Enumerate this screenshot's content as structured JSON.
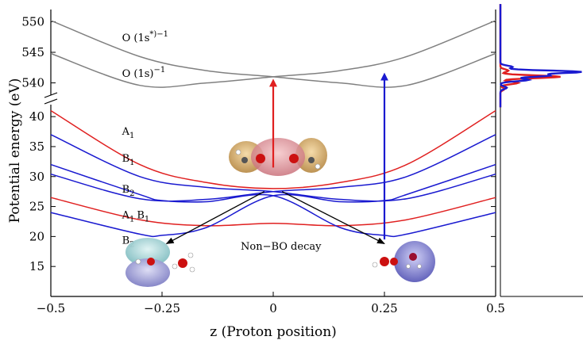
{
  "chart_data": {
    "type": "line",
    "xlabel": "z (Proton position)",
    "ylabel": "Potential energy (eV)",
    "xlim": [
      -0.5,
      0.5
    ],
    "ylim_lower": [
      10,
      42
    ],
    "ylim_upper": [
      538,
      552
    ],
    "x_ticks": [
      "−0.5",
      "−0.25",
      "0",
      "0.25",
      "0.5"
    ],
    "y_ticks_lower": [
      "15",
      "20",
      "25",
      "30",
      "35",
      "40"
    ],
    "y_ticks_upper": [
      "540",
      "545",
      "550"
    ],
    "series": [
      {
        "color": "#808080",
        "x": [
          -0.5,
          -0.3,
          -0.15,
          0,
          0.15,
          0.3,
          0.5
        ],
        "y": [
          550.2,
          544.3,
          542.0,
          541.0,
          540.0,
          539.6,
          544.8
        ]
      },
      {
        "color": "#808080",
        "x": [
          -0.5,
          -0.3,
          -0.15,
          0,
          0.15,
          0.3,
          0.5
        ],
        "y": [
          544.8,
          539.6,
          540.0,
          541.0,
          542.0,
          544.3,
          550.2
        ]
      },
      {
        "color": "#e02020",
        "x": [
          -0.5,
          -0.3,
          -0.15,
          0,
          0.15,
          0.3,
          0.5
        ],
        "y": [
          41.0,
          32.0,
          29.0,
          28.0,
          29.0,
          32.0,
          41.0
        ]
      },
      {
        "color": "#e02020",
        "x": [
          -0.5,
          -0.3,
          -0.15,
          0,
          0.15,
          0.3,
          0.5
        ],
        "y": [
          26.5,
          22.8,
          21.8,
          22.2,
          21.8,
          22.8,
          26.5
        ]
      },
      {
        "color": "#1a1ad0",
        "x": [
          -0.5,
          -0.3,
          -0.15,
          0,
          0.15,
          0.3,
          0.5
        ],
        "y": [
          37.0,
          30.0,
          28.2,
          27.5,
          26.2,
          26.3,
          30.4
        ]
      },
      {
        "color": "#1a1ad0",
        "x": [
          -0.5,
          -0.3,
          -0.15,
          0,
          0.15,
          0.3,
          0.5
        ],
        "y": [
          30.4,
          26.3,
          26.2,
          27.5,
          28.2,
          30.0,
          37.0
        ]
      },
      {
        "color": "#1a1ad0",
        "x": [
          -0.5,
          -0.3,
          -0.25,
          -0.15,
          0,
          0.15,
          0.25,
          0.3,
          0.5
        ],
        "y": [
          32.0,
          27.0,
          26.0,
          25.8,
          26.8,
          21.5,
          20.2,
          20.4,
          24.0
        ]
      },
      {
        "color": "#1a1ad0",
        "x": [
          -0.5,
          -0.3,
          -0.25,
          -0.15,
          0,
          0.15,
          0.25,
          0.3,
          0.5
        ],
        "y": [
          24.0,
          20.4,
          20.2,
          21.5,
          26.8,
          25.8,
          26.0,
          27.0,
          32.0
        ]
      }
    ],
    "state_labels": [
      {
        "id": "o1s-star",
        "text": "O (1s",
        "sup": "*)−1",
        "x": -0.34,
        "y": 546.8
      },
      {
        "id": "o1s",
        "text": "O (1s)",
        "sup": "−1",
        "x": -0.34,
        "y": 541.0
      },
      {
        "id": "a1-upper",
        "text": "A",
        "sub": "1",
        "x": -0.34,
        "y": 37.0
      },
      {
        "id": "b1-upper",
        "text": "B",
        "sub": "1",
        "x": -0.34,
        "y": 32.5
      },
      {
        "id": "b2-mid",
        "text": "B",
        "sub": "2",
        "x": -0.34,
        "y": 27.3
      },
      {
        "id": "a1b1-lower",
        "text": "A",
        "sub": "1",
        "text2": "B",
        "sub2": "1",
        "x": -0.34,
        "y": 23.0
      },
      {
        "id": "b2-lower",
        "text": "B",
        "sub": "2",
        "x": -0.34,
        "y": 18.8
      }
    ],
    "annotation": "Non−BO decay",
    "excitation_arrows": [
      {
        "color": "#e02020",
        "x": 0,
        "y_from": 31.5,
        "y_to_upper": 540.8
      },
      {
        "color": "#1a1ad0",
        "x": 0.25,
        "y_from": 19.5,
        "y_to_upper": 541.8
      }
    ],
    "spectrum": {
      "series": [
        {
          "color": "#e02020",
          "energies": [
            539.0,
            540.0,
            541.0,
            542.0
          ],
          "values": [
            0.05,
            0.22,
            0.75,
            0.1
          ]
        },
        {
          "color": "#1a1ad0",
          "energies": [
            539.2,
            540.5,
            541.2,
            541.8,
            542.6
          ],
          "values": [
            0.08,
            0.35,
            0.6,
            1.0,
            0.15
          ]
        }
      ]
    }
  }
}
